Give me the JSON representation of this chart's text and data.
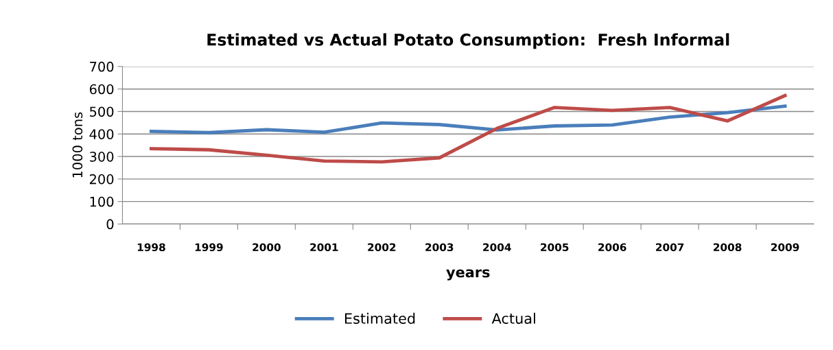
{
  "chart_data": {
    "type": "line",
    "title": "Estimated vs Actual Potato Consumption:  Fresh Informal",
    "xlabel": "years",
    "ylabel": "1000 tons",
    "categories": [
      "1998",
      "1999",
      "2000",
      "2001",
      "2002",
      "2003",
      "2004",
      "2005",
      "2006",
      "2007",
      "2008",
      "2009"
    ],
    "series": [
      {
        "name": "Estimated",
        "color": "#4a7ebb",
        "values": [
          412,
          406,
          419,
          408,
          449,
          442,
          418,
          436,
          440,
          475,
          495,
          524
        ]
      },
      {
        "name": "Actual",
        "color": "#be4b48",
        "values": [
          335,
          330,
          306,
          280,
          276,
          294,
          425,
          518,
          505,
          518,
          458,
          571
        ]
      }
    ],
    "ylim": [
      0,
      700
    ],
    "yticks": [
      0,
      100,
      200,
      300,
      400,
      500,
      600,
      700
    ],
    "grid": "y",
    "legend": "bottom",
    "marker": "none",
    "line_style": "solid"
  }
}
